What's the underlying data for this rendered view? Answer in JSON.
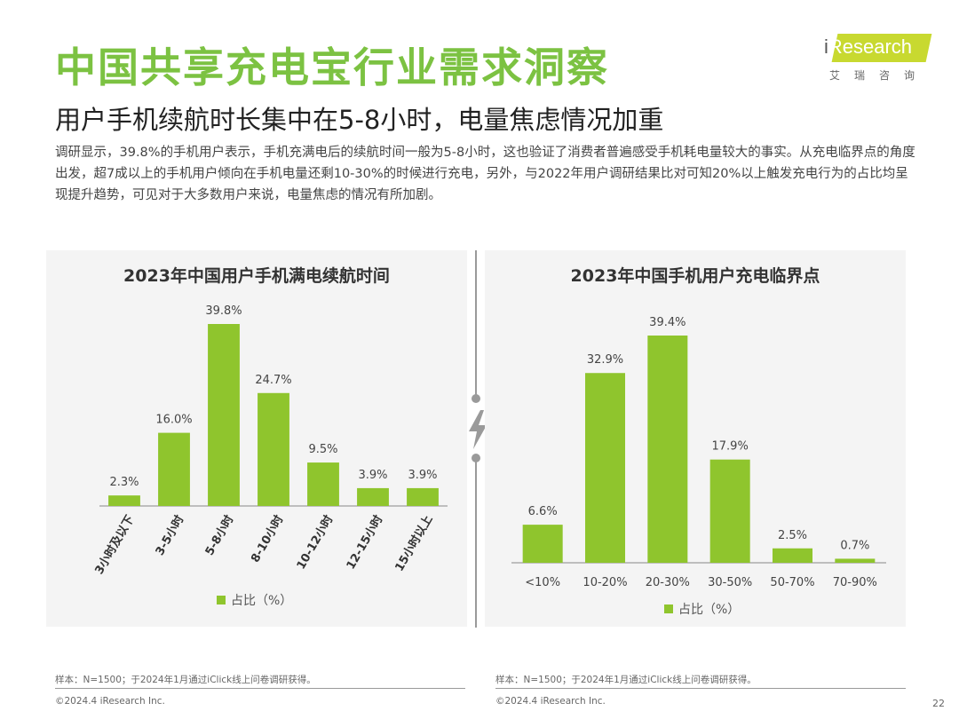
{
  "header": {
    "title": "中国共享充电宝行业需求洞察",
    "subtitle": "用户手机续航时长集中在5-8小时，电量焦虑情况加重",
    "description": "调研显示，39.8%的手机用户表示，手机充满电后的续航时间一般为5-8小时，这也验证了消费者普遍感受手机耗电量较大的事实。从充电临界点的角度出发，超7成以上的手机用户倾向在手机电量还剩10-30%的时候进行充电，另外，与2022年用户调研结果比对可知20%以上触发充电行为的占比均呈现提升趋势，可见对于大多数用户来说，电量焦虑的情况有所加剧。"
  },
  "logo": {
    "i": "i",
    "brand": "Research",
    "cn": "艾瑞咨询"
  },
  "colors": {
    "accent": "#7cc242",
    "bar": "#8fc52d"
  },
  "chart_data": [
    {
      "type": "bar",
      "title": "2023年中国用户手机满电续航时间",
      "categories": [
        "3小时及以下",
        "3-5小时",
        "5-8小时",
        "8-10小时",
        "10-12小时",
        "12-15小时",
        "15小时以上"
      ],
      "values": [
        2.3,
        16.0,
        39.8,
        24.7,
        9.5,
        3.9,
        3.9
      ],
      "value_labels": [
        "2.3%",
        "16.0%",
        "39.8%",
        "24.7%",
        "9.5%",
        "3.9%",
        "3.9%"
      ],
      "series": [
        {
          "name": "占比（%）",
          "values": [
            2.3,
            16.0,
            39.8,
            24.7,
            9.5,
            3.9,
            3.9
          ]
        }
      ],
      "tick_rotation": "-60deg",
      "legend": "bottom"
    },
    {
      "type": "bar",
      "title": "2023年中国手机用户充电临界点",
      "categories": [
        "<10%",
        "10-20%",
        "20-30%",
        "30-50%",
        "50-70%",
        "70-90%"
      ],
      "values": [
        6.6,
        32.9,
        39.4,
        17.9,
        2.5,
        0.7
      ],
      "value_labels": [
        "6.6%",
        "32.9%",
        "39.4%",
        "17.9%",
        "2.5%",
        "0.7%"
      ],
      "series": [
        {
          "name": "占比（%）",
          "values": [
            6.6,
            32.9,
            39.4,
            17.9,
            2.5,
            0.7
          ]
        }
      ],
      "legend": "bottom"
    }
  ],
  "footer": {
    "left_note": "样本：N=1500；于2024年1月通过iClick线上问卷调研获得。",
    "right_note": "样本：N=1500；于2024年1月通过iClick线上问卷调研获得。",
    "left_copyright": "©2024.4 iResearch Inc.",
    "right_copyright": "©2024.4 iResearch Inc.",
    "page": "22"
  }
}
